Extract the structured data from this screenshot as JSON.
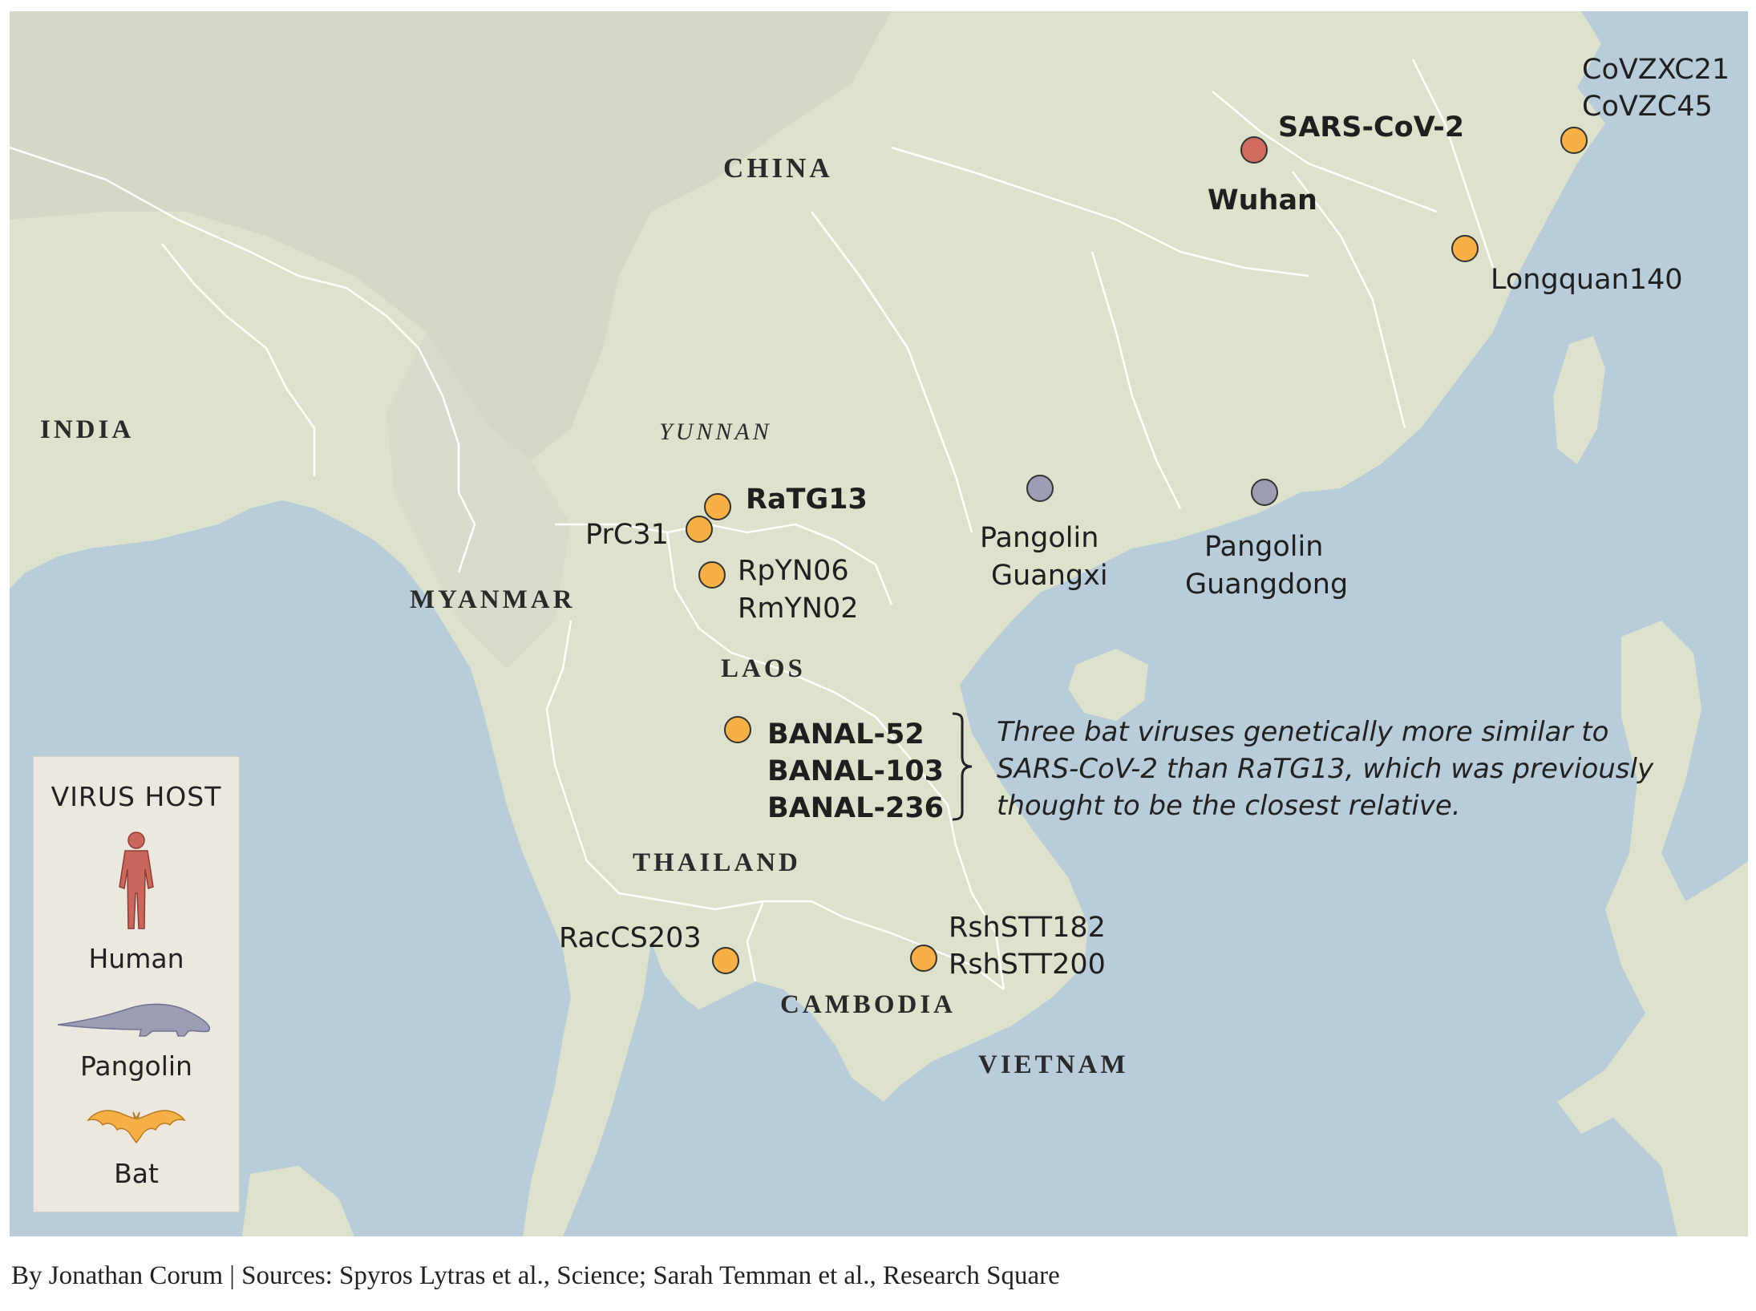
{
  "colors": {
    "human": "#d16a5f",
    "pangolin": "#9b9db4",
    "bat": "#f6b045",
    "water": "#b8ccd9",
    "land": "#dfe3cf"
  },
  "places": {
    "china": "CHINA",
    "india": "INDIA",
    "myanmar": "MYANMAR",
    "laos": "LAOS",
    "thailand": "THAILAND",
    "cambodia": "CAMBODIA",
    "vietnam": "VIETNAM",
    "yunnan": "YUNNAN",
    "wuhan": "Wuhan"
  },
  "viruses": {
    "sars_cov_2": "SARS-CoV-2",
    "covzxc21": "CoVZXC21",
    "covzc45": "CoVZC45",
    "longquan140": "Longquan140",
    "ratg13": "RaTG13",
    "prc31": "PrC31",
    "rpyn06": "RpYN06",
    "rmyn02": "RmYN02",
    "pangolin_guangxi_1": "Pangolin",
    "pangolin_guangxi_2": "Guangxi",
    "pangolin_guangdong_1": "Pangolin",
    "pangolin_guangdong_2": "Guangdong",
    "banal52": "BANAL-52",
    "banal103": "BANAL-103",
    "banal236": "BANAL-236",
    "raccs203": "RacCS203",
    "rshstt182": "RshSTT182",
    "rshstt200": "RshSTT200"
  },
  "annotation": {
    "line1": "Three bat viruses genetically more similar to",
    "line2": "SARS-CoV-2 than RaTG13, which was previously",
    "line3": "thought to be the closest relative."
  },
  "legend": {
    "title": "VIRUS HOST",
    "human": "Human",
    "pangolin": "Pangolin",
    "bat": "Bat",
    "human_icon": "human-figure-icon",
    "pangolin_icon": "pangolin-icon",
    "bat_icon": "bat-icon"
  },
  "footer": {
    "credit": "By Jonathan Corum | Sources: Spyros Lytras et al., Science; Sarah Temman et al., Research Square"
  }
}
